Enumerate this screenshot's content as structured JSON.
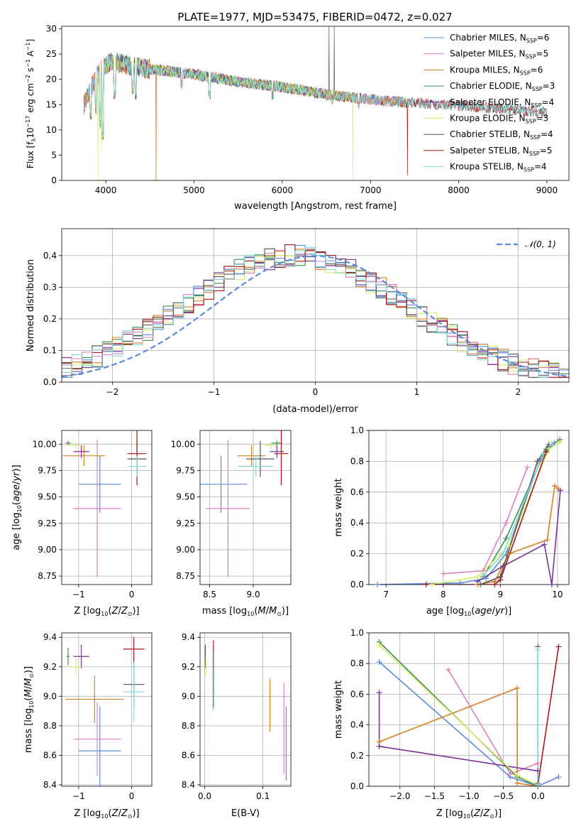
{
  "title": "PLATE=1977, MJD=53475, FIBERID=0472, z=0.027",
  "colors": {
    "Chabrier MILES": "#5b8bd9",
    "Salpeter MILES": "#e07fbf",
    "Kroupa MILES": "#d97f22",
    "Chabrier ELODIE": "#3f8f55",
    "Salpeter ELODIE": "#7a3594",
    "Kroupa ELODIE": "#d8ee6a",
    "Chabrier STELIB": "#555555",
    "Salpeter STELIB": "#a81616",
    "Kroupa STELIB": "#86d9d9",
    "normal": "#5b8bd9"
  },
  "chart_data": [
    {
      "id": "spectrum",
      "type": "line",
      "xlabel": "wavelength [Angstrom, rest frame]",
      "ylabel": "Flux [f_λ 10^-17 erg cm^-2 s^-1 A^-1]",
      "xlim": [
        3500,
        9250
      ],
      "ylim": [
        0,
        30.5
      ],
      "xticks": [
        4000,
        5000,
        6000,
        7000,
        8000,
        9000
      ],
      "yticks": [
        0,
        5,
        10,
        15,
        20,
        25,
        30
      ],
      "legend_position": "top-right",
      "legend": [
        {
          "model": "Chabrier MILES",
          "label": "Chabrier MILES, N",
          "sub": "SSP",
          "n": "=6"
        },
        {
          "model": "Salpeter MILES",
          "label": "Salpeter MILES, N",
          "sub": "SSP",
          "n": "=5"
        },
        {
          "model": "Kroupa MILES",
          "label": "Kroupa MILES, N",
          "sub": "SSP",
          "n": "=6"
        },
        {
          "model": "Chabrier ELODIE",
          "label": "Chabrier ELODIE, N",
          "sub": "SSP",
          "n": "=3"
        },
        {
          "model": "Salpeter ELODIE",
          "label": "Salpeter ELODIE, N",
          "sub": "SSP",
          "n": "=4"
        },
        {
          "model": "Kroupa ELODIE",
          "label": "Kroupa ELODIE, N",
          "sub": "SSP",
          "n": "=3"
        },
        {
          "model": "Chabrier STELIB",
          "label": "Chabrier STELIB, N",
          "sub": "SSP",
          "n": "=4"
        },
        {
          "model": "Salpeter STELIB",
          "label": "Salpeter STELIB, N",
          "sub": "SSP",
          "n": "=5"
        },
        {
          "model": "Kroupa STELIB",
          "label": "Kroupa STELIB, N",
          "sub": "SSP",
          "n": "=4"
        }
      ],
      "continuum": [
        [
          3750,
          15
        ],
        [
          3850,
          19
        ],
        [
          3950,
          22
        ],
        [
          4050,
          23.5
        ],
        [
          4200,
          23
        ],
        [
          4500,
          22
        ],
        [
          5000,
          21
        ],
        [
          5500,
          19.5
        ],
        [
          6000,
          18.5
        ],
        [
          6500,
          17
        ],
        [
          7000,
          16
        ],
        [
          7500,
          15.3
        ],
        [
          8000,
          14.8
        ],
        [
          8500,
          14.2
        ],
        [
          9000,
          13.5
        ]
      ],
      "absorption_features": [
        [
          3830,
          12
        ],
        [
          3890,
          13
        ],
        [
          3934,
          10
        ],
        [
          3968,
          8
        ],
        [
          4101,
          16
        ],
        [
          4300,
          17
        ],
        [
          4340,
          16
        ],
        [
          4861,
          18
        ],
        [
          5175,
          16
        ],
        [
          5890,
          16
        ],
        [
          6563,
          15
        ],
        [
          6870,
          14
        ]
      ],
      "model_artifacts": [
        {
          "model": "Kroupa ELODIE",
          "x": 3910,
          "y": 0
        },
        {
          "model": "Kroupa ELODIE",
          "x": 3950,
          "y": 6
        },
        {
          "model": "Salpeter MILES",
          "x": 4570,
          "y": 0
        },
        {
          "model": "Kroupa MILES",
          "x": 4570,
          "y": 0
        },
        {
          "model": "Kroupa ELODIE",
          "x": 6800,
          "y": 0
        },
        {
          "model": "Salpeter STELIB",
          "x": 7420,
          "y": 1
        },
        {
          "model": "Chabrier STELIB",
          "x": 6530,
          "y": 30.5
        },
        {
          "model": "Chabrier STELIB",
          "x": 6590,
          "y": 30.5
        }
      ]
    },
    {
      "id": "residuals",
      "type": "step",
      "xlabel": "(data-model)/error",
      "ylabel": "Normed distribution",
      "xlim": [
        -2.5,
        2.5
      ],
      "ylim": [
        0,
        0.485
      ],
      "xticks": [
        -2,
        -1,
        0,
        1,
        2
      ],
      "yticks": [
        0.0,
        0.1,
        0.2,
        0.3,
        0.4
      ],
      "legend_position": "top-right",
      "legend_label": "𝒩(0, 1)",
      "bin_width": 0.1
    },
    {
      "id": "z-age",
      "type": "errorbar",
      "xlabel": "Z [log10(Z/Z⊙)]",
      "ylabel": "age [log10(age/yr)]",
      "xlim": [
        -1.32,
        0.38
      ],
      "ylim": [
        8.67,
        10.13
      ],
      "xticks": [
        -1,
        0
      ],
      "yticks": [
        8.75,
        9.0,
        9.25,
        9.5,
        9.75,
        10.0
      ],
      "points": [
        {
          "model": "Chabrier MILES",
          "x": -0.6,
          "xerr": 0.4,
          "y": 9.62,
          "yerr": 0.27
        },
        {
          "model": "Salpeter MILES",
          "x": -0.65,
          "xerr": 0.45,
          "y": 9.39,
          "yerr": 0.65
        },
        {
          "model": "Kroupa MILES",
          "x": -0.9,
          "xerr": 0.4,
          "y": 9.89,
          "yerr": 0.1
        },
        {
          "model": "Chabrier ELODIE",
          "x": -1.2,
          "xerr": 0.05,
          "y": 10.01,
          "yerr": 0.02
        },
        {
          "model": "Salpeter ELODIE",
          "x": -0.95,
          "xerr": 0.15,
          "y": 9.93,
          "yerr": 0.06
        },
        {
          "model": "Kroupa ELODIE",
          "x": -1.05,
          "xerr": 0.15,
          "y": 9.99,
          "yerr": 0.03
        },
        {
          "model": "Chabrier STELIB",
          "x": 0.1,
          "xerr": 0.18,
          "y": 9.86,
          "yerr": 0.17
        },
        {
          "model": "Salpeter STELIB",
          "x": 0.1,
          "xerr": 0.18,
          "y": 9.91,
          "yerr": 0.3
        },
        {
          "model": "Kroupa STELIB",
          "x": 0.1,
          "xerr": 0.18,
          "y": 9.79,
          "yerr": 0.1
        }
      ]
    },
    {
      "id": "mass-age",
      "type": "errorbar",
      "xlabel": "mass [log10(M/M⊙)]",
      "ylabel": "",
      "xlim": [
        8.39,
        9.43
      ],
      "ylim": [
        8.67,
        10.13
      ],
      "xticks": [
        8.5,
        9.0
      ],
      "yticks": [
        8.75,
        9.0,
        9.25,
        9.5,
        9.75,
        10.0
      ],
      "points": [
        {
          "model": "Chabrier MILES",
          "x": 8.63,
          "xerr": 0.3,
          "y": 9.62,
          "yerr": 0.27
        },
        {
          "model": "Salpeter MILES",
          "x": 8.71,
          "xerr": 0.25,
          "y": 9.39,
          "yerr": 0.65
        },
        {
          "model": "Kroupa MILES",
          "x": 8.98,
          "xerr": 0.16,
          "y": 9.89,
          "yerr": 0.1
        },
        {
          "model": "Chabrier ELODIE",
          "x": 9.27,
          "xerr": 0.06,
          "y": 10.01,
          "yerr": 0.02
        },
        {
          "model": "Salpeter ELODIE",
          "x": 9.27,
          "xerr": 0.08,
          "y": 9.93,
          "yerr": 0.06
        },
        {
          "model": "Kroupa ELODIE",
          "x": 9.2,
          "xerr": 0.06,
          "y": 9.99,
          "yerr": 0.03
        },
        {
          "model": "Chabrier STELIB",
          "x": 9.08,
          "xerr": 0.16,
          "y": 9.86,
          "yerr": 0.17
        },
        {
          "model": "Salpeter STELIB",
          "x": 9.32,
          "xerr": 0.08,
          "y": 9.91,
          "yerr": 0.3
        },
        {
          "model": "Kroupa STELIB",
          "x": 9.03,
          "xerr": 0.2,
          "y": 9.79,
          "yerr": 0.1
        }
      ]
    },
    {
      "id": "age-weight",
      "type": "line",
      "xlabel": "age [log10(age/yr)]",
      "ylabel": "mass weight",
      "xlim": [
        6.7,
        10.2
      ],
      "ylim": [
        0,
        1.0
      ],
      "xticks": [
        7,
        8,
        9,
        10
      ],
      "yticks": [
        0.0,
        0.2,
        0.4,
        0.6,
        0.8,
        1.0
      ],
      "series": [
        {
          "model": "Chabrier MILES",
          "points": [
            [
              6.85,
              0.0
            ],
            [
              8.3,
              0.01
            ],
            [
              8.75,
              0.04
            ],
            [
              9.1,
              0.2
            ],
            [
              9.7,
              0.81
            ],
            [
              9.95,
              0.92
            ]
          ]
        },
        {
          "model": "Salpeter MILES",
          "points": [
            [
              8.0,
              0.07
            ],
            [
              8.7,
              0.09
            ],
            [
              9.1,
              0.4
            ],
            [
              9.47,
              0.76
            ]
          ]
        },
        {
          "model": "Kroupa MILES",
          "points": [
            [
              8.6,
              0.0
            ],
            [
              8.9,
              0.02
            ],
            [
              9.15,
              0.2
            ],
            [
              9.82,
              0.29
            ],
            [
              9.95,
              0.64
            ],
            [
              10.02,
              0.62
            ]
          ]
        },
        {
          "model": "Chabrier ELODIE",
          "points": [
            [
              8.7,
              0.05
            ],
            [
              9.1,
              0.3
            ],
            [
              9.8,
              0.88
            ],
            [
              10.04,
              0.94
            ]
          ]
        },
        {
          "model": "Salpeter ELODIE",
          "points": [
            [
              8.6,
              0.02
            ],
            [
              9.05,
              0.12
            ],
            [
              9.77,
              0.26
            ],
            [
              9.9,
              0.0
            ],
            [
              10.05,
              0.61
            ]
          ]
        },
        {
          "model": "Kroupa ELODIE",
          "points": [
            [
              7.8,
              0.0
            ],
            [
              8.6,
              0.05
            ],
            [
              9.15,
              0.25
            ],
            [
              9.85,
              0.88
            ],
            [
              10.03,
              0.92
            ]
          ]
        },
        {
          "model": "Chabrier STELIB",
          "points": [
            [
              8.65,
              0.0
            ],
            [
              9.0,
              0.05
            ],
            [
              9.65,
              0.8
            ],
            [
              9.85,
              0.91
            ]
          ]
        },
        {
          "model": "Salpeter STELIB",
          "points": [
            [
              7.7,
              0.0
            ],
            [
              8.9,
              0.0
            ],
            [
              9.0,
              0.03
            ],
            [
              9.8,
              0.86
            ],
            [
              9.9,
              0.91
            ]
          ]
        },
        {
          "model": "Kroupa STELIB",
          "points": [
            [
              8.7,
              0.06
            ],
            [
              9.05,
              0.2
            ],
            [
              9.75,
              0.85
            ],
            [
              9.9,
              0.91
            ]
          ]
        }
      ]
    },
    {
      "id": "z-mass",
      "type": "errorbar",
      "xlabel": "Z [log10(Z/Z⊙)]",
      "ylabel": "mass [log10(M/M⊙)]",
      "xlim": [
        -1.32,
        0.38
      ],
      "ylim": [
        8.39,
        9.43
      ],
      "xticks": [
        -1,
        0
      ],
      "yticks": [
        8.4,
        8.6,
        8.8,
        9.0,
        9.2,
        9.4
      ],
      "points": [
        {
          "model": "Chabrier MILES",
          "x": -0.6,
          "xerr": 0.4,
          "y": 8.63,
          "yerr": 0.3
        },
        {
          "model": "Salpeter MILES",
          "x": -0.65,
          "xerr": 0.45,
          "y": 8.71,
          "yerr": 0.25
        },
        {
          "model": "Kroupa MILES",
          "x": -0.7,
          "xerr": 0.55,
          "y": 8.98,
          "yerr": 0.16
        },
        {
          "model": "Chabrier ELODIE",
          "x": -1.2,
          "xerr": 0.03,
          "y": 9.27,
          "yerr": 0.06
        },
        {
          "model": "Salpeter ELODIE",
          "x": -0.95,
          "xerr": 0.15,
          "y": 9.27,
          "yerr": 0.08
        },
        {
          "model": "Kroupa ELODIE",
          "x": -1.05,
          "xerr": 0.1,
          "y": 9.2,
          "yerr": 0.06
        },
        {
          "model": "Chabrier STELIB",
          "x": 0.04,
          "xerr": 0.2,
          "y": 9.08,
          "yerr": 0.16
        },
        {
          "model": "Salpeter STELIB",
          "x": 0.04,
          "xerr": 0.2,
          "y": 9.32,
          "yerr": 0.08
        },
        {
          "model": "Kroupa STELIB",
          "x": 0.04,
          "xerr": 0.2,
          "y": 9.03,
          "yerr": 0.2
        }
      ]
    },
    {
      "id": "ebv-mass",
      "type": "errorbar",
      "xlabel": "E(B-V)",
      "ylabel": "",
      "xlim": [
        -0.008,
        0.148
      ],
      "ylim": [
        8.39,
        9.43
      ],
      "xticks": [
        0.0,
        0.1
      ],
      "yticks": [
        8.4,
        8.6,
        8.8,
        9.0,
        9.2,
        9.4
      ],
      "points": [
        {
          "model": "Chabrier MILES",
          "x": 0.14,
          "y": 8.68,
          "yerr": 0.25
        },
        {
          "model": "Salpeter MILES",
          "x": 0.136,
          "y": 8.78,
          "yerr": 0.31
        },
        {
          "model": "Kroupa MILES",
          "x": 0.112,
          "y": 8.94,
          "yerr": 0.18
        },
        {
          "model": "Chabrier ELODIE",
          "x": 0.001,
          "y": 9.27,
          "yerr": 0.06
        },
        {
          "model": "Salpeter ELODIE",
          "x": 0.001,
          "y": 9.27,
          "yerr": 0.08
        },
        {
          "model": "Kroupa ELODIE",
          "x": 0.002,
          "y": 9.2,
          "yerr": 0.06
        },
        {
          "model": "Chabrier STELIB",
          "x": 0.015,
          "y": 9.08,
          "yerr": 0.16
        },
        {
          "model": "Salpeter STELIB",
          "x": 0.015,
          "y": 9.28,
          "yerr": 0.1
        },
        {
          "model": "Kroupa STELIB",
          "x": 0.014,
          "y": 9.1,
          "yerr": 0.2
        }
      ]
    },
    {
      "id": "z-weight",
      "type": "line",
      "xlabel": "Z [log10(Z/Z⊙)]",
      "ylabel": "mass weight",
      "xlim": [
        -2.45,
        0.45
      ],
      "ylim": [
        0,
        1.0
      ],
      "xticks": [
        -2.0,
        -1.5,
        -1.0,
        -0.5,
        0.0
      ],
      "yticks": [
        0.0,
        0.2,
        0.4,
        0.6,
        0.8,
        1.0
      ],
      "series": [
        {
          "model": "Chabrier MILES",
          "points": [
            [
              -2.3,
              0.81
            ],
            [
              -0.4,
              0.06
            ],
            [
              0.0,
              0.0
            ],
            [
              0.3,
              0.06
            ]
          ]
        },
        {
          "model": "Salpeter MILES",
          "points": [
            [
              -1.3,
              0.76
            ],
            [
              -0.4,
              0.08
            ],
            [
              0.0,
              0.15
            ]
          ]
        },
        {
          "model": "Kroupa MILES",
          "points": [
            [
              -2.3,
              0.29
            ],
            [
              -0.3,
              0.64
            ],
            [
              -0.3,
              0.02
            ],
            [
              0.0,
              0.0
            ]
          ]
        },
        {
          "model": "Chabrier ELODIE",
          "points": [
            [
              -2.3,
              0.94
            ],
            [
              -0.3,
              0.06
            ],
            [
              0.0,
              0.0
            ]
          ]
        },
        {
          "model": "Salpeter ELODIE",
          "points": [
            [
              -2.3,
              0.61
            ],
            [
              -2.3,
              0.26
            ],
            [
              0.0,
              0.1
            ],
            [
              0.0,
              0.02
            ]
          ]
        },
        {
          "model": "Kroupa ELODIE",
          "points": [
            [
              -2.3,
              0.92
            ],
            [
              -0.3,
              0.07
            ],
            [
              0.0,
              0.01
            ]
          ]
        },
        {
          "model": "Chabrier STELIB",
          "points": [
            [
              0.0,
              0.91
            ],
            [
              0.0,
              0.0
            ]
          ]
        },
        {
          "model": "Salpeter STELIB",
          "points": [
            [
              0.0,
              0.01
            ],
            [
              0.3,
              0.91
            ]
          ]
        },
        {
          "model": "Kroupa STELIB",
          "points": [
            [
              0.0,
              0.89
            ],
            [
              0.0,
              0.01
            ]
          ]
        }
      ]
    }
  ]
}
